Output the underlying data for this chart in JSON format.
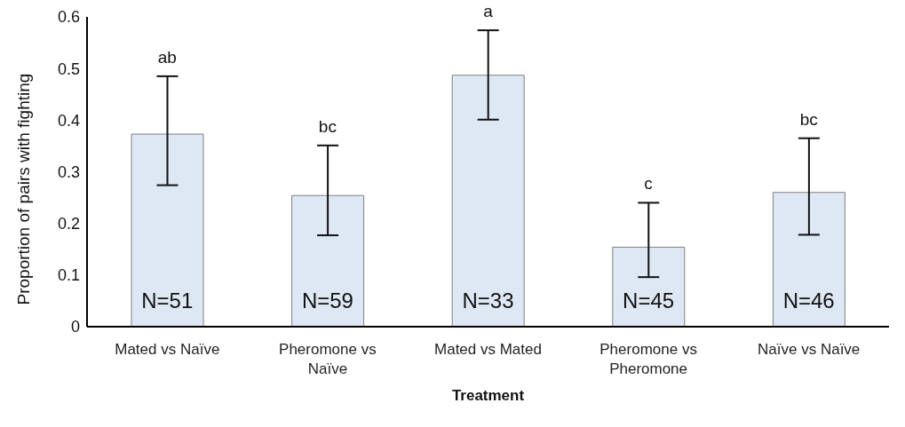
{
  "chart_data": {
    "type": "bar",
    "xlabel": "Treatment",
    "ylabel": "Proportion of pairs with fighting",
    "categories": [
      "Mated vs Naïve",
      "Pheromone vs Naïve",
      "Mated vs Mated",
      "Pheromone vs Pheromone",
      "Naïve vs Naïve"
    ],
    "values": [
      0.373,
      0.254,
      0.487,
      0.154,
      0.26
    ],
    "errors": [
      [
        0.274,
        0.485
      ],
      [
        0.177,
        0.351
      ],
      [
        0.401,
        0.574
      ],
      [
        0.096,
        0.24
      ],
      [
        0.178,
        0.365
      ]
    ],
    "color": "#dee8f4",
    "ylim": [
      0,
      0.6
    ],
    "yticks": [
      0,
      0.1,
      0.2,
      0.3,
      0.4,
      0.5,
      0.6
    ],
    "grid": false,
    "legend": false,
    "annotations": [
      {
        "text": "ab",
        "x": "Mated vs Naïve",
        "y": 0.485
      },
      {
        "text": "bc",
        "x": "Pheromone vs Naïve",
        "y": 0.351
      },
      {
        "text": "a",
        "x": "Mated vs Mated",
        "y": 0.574
      },
      {
        "text": "c",
        "x": "Pheromone vs Pheromone",
        "y": 0.24
      },
      {
        "text": "bc",
        "x": "Naïve vs Naïve",
        "y": 0.365
      },
      "N=51",
      "N=59",
      "N=33",
      "N=45",
      "N=46"
    ]
  }
}
